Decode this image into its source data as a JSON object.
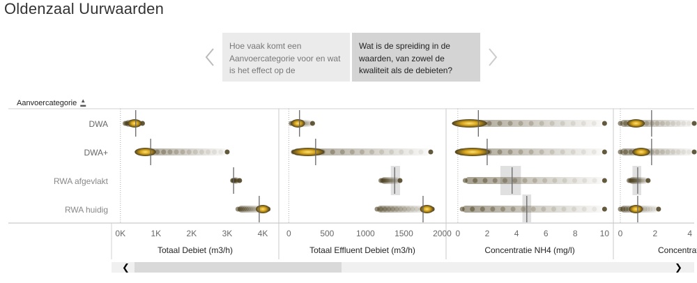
{
  "title": "Oldenzaal Uurwaarden",
  "story": {
    "points": [
      {
        "text": "Hoe vaak komt een Aanvoercategorie voor en wat is het effect op de",
        "active": false
      },
      {
        "text": "Wat is de spreiding in de waarden, van zowel de kwaliteit als de debieten?",
        "active": true
      }
    ],
    "prev_icon": "chevron-left-icon",
    "next_icon": "chevron-right-icon"
  },
  "row_header": {
    "label": "Aanvoercategorie",
    "sort_icon": "sort-ascending-icon"
  },
  "categories": [
    "DWA",
    "DWA+",
    "RWA afgevlakt",
    "RWA huidig"
  ],
  "colors": {
    "gold": "#f5c518",
    "dark_dot": "#4a3e1e",
    "ref_line": "#666666",
    "band": "#e0e0e0",
    "grid": "#cccccc"
  },
  "chart_data": [
    {
      "type": "scatter",
      "xlabel": "Totaal Debiet (m3/h)",
      "xlim": [
        -250,
        4450
      ],
      "ticks": [
        0,
        1000,
        2000,
        3000,
        4000
      ],
      "tick_labels": [
        "0K",
        "1K",
        "2K",
        "3K",
        "4K"
      ],
      "median": [
        430,
        850,
        3180,
        3900
      ],
      "series": [
        {
          "category": "DWA",
          "min": 130,
          "max": 620,
          "peak": [
            400
          ],
          "band": null
        },
        {
          "category": "DWA+",
          "min": 500,
          "max": 3000,
          "peak": [
            700
          ],
          "band": null
        },
        {
          "category": "RWA afgevlakt",
          "min": 3150,
          "max": 3350,
          "peak": [],
          "band": null
        },
        {
          "category": "RWA huidig",
          "min": 3300,
          "max": 4150,
          "peak": [
            4000
          ],
          "band": null
        }
      ]
    },
    {
      "type": "scatter",
      "xlabel": "Totaal Effluent Debiet (m3/h)",
      "xlim": [
        -130,
        2050
      ],
      "ticks": [
        0,
        500,
        1000,
        1500,
        2000
      ],
      "tick_labels": [
        "0",
        "500",
        "1000",
        "1500",
        "2000"
      ],
      "median": [
        140,
        350,
        1380,
        1750
      ],
      "series": [
        {
          "category": "DWA",
          "min": 30,
          "max": 310,
          "peak": [
            120
          ],
          "band": null
        },
        {
          "category": "DWA+",
          "min": 60,
          "max": 1850,
          "peak": [
            250
          ],
          "band": null
        },
        {
          "category": "RWA afgevlakt",
          "min": 1200,
          "max": 1450,
          "peak": [],
          "band": [
            1330,
            1450
          ]
        },
        {
          "category": "RWA huidig",
          "min": 1150,
          "max": 1870,
          "peak": [
            1800
          ],
          "band": null
        }
      ]
    },
    {
      "type": "scatter",
      "xlabel": "Concentratie NH4 (mg/l)",
      "xlim": [
        -0.8,
        10.6
      ],
      "ticks": [
        0,
        2,
        4,
        6,
        8,
        10
      ],
      "tick_labels": [
        "0",
        "2",
        "4",
        "6",
        "8",
        "10"
      ],
      "median": [
        1.4,
        2.0,
        3.7,
        4.7
      ],
      "series": [
        {
          "category": "DWA",
          "min": 0,
          "max": 10,
          "peak": [
            0.8
          ],
          "band": null
        },
        {
          "category": "DWA+",
          "min": 0,
          "max": 10,
          "peak": [
            1.0
          ],
          "band": null
        },
        {
          "category": "RWA afgevlakt",
          "min": 0.5,
          "max": 10,
          "peak": [],
          "band": [
            2.9,
            4.3
          ]
        },
        {
          "category": "RWA huidig",
          "min": 0.3,
          "max": 10,
          "peak": [],
          "band": [
            4.4,
            5.0
          ]
        }
      ]
    },
    {
      "type": "scatter",
      "xlabel": "Concentratie",
      "xlim": [
        -0.4,
        4.25
      ],
      "ticks": [
        0,
        2,
        4
      ],
      "tick_labels": [
        "0",
        "2",
        "4"
      ],
      "median": [
        1.8,
        1.8,
        1.0,
        1.0
      ],
      "series": [
        {
          "category": "DWA",
          "min": 0,
          "max": 4.25,
          "peak": [
            0.9
          ],
          "band": null
        },
        {
          "category": "DWA+",
          "min": 0,
          "max": 4.25,
          "peak": [
            1.2
          ],
          "band": null
        },
        {
          "category": "RWA afgevlakt",
          "min": 0.5,
          "max": 1.6,
          "peak": [],
          "band": [
            0.7,
            1.2
          ]
        },
        {
          "category": "RWA huidig",
          "min": 0,
          "max": 2.2,
          "peak": [
            0.9
          ],
          "band": null
        }
      ]
    }
  ],
  "scrollbar": {
    "left_icon": "chevron-left-icon",
    "right_icon": "chevron-right-icon"
  }
}
